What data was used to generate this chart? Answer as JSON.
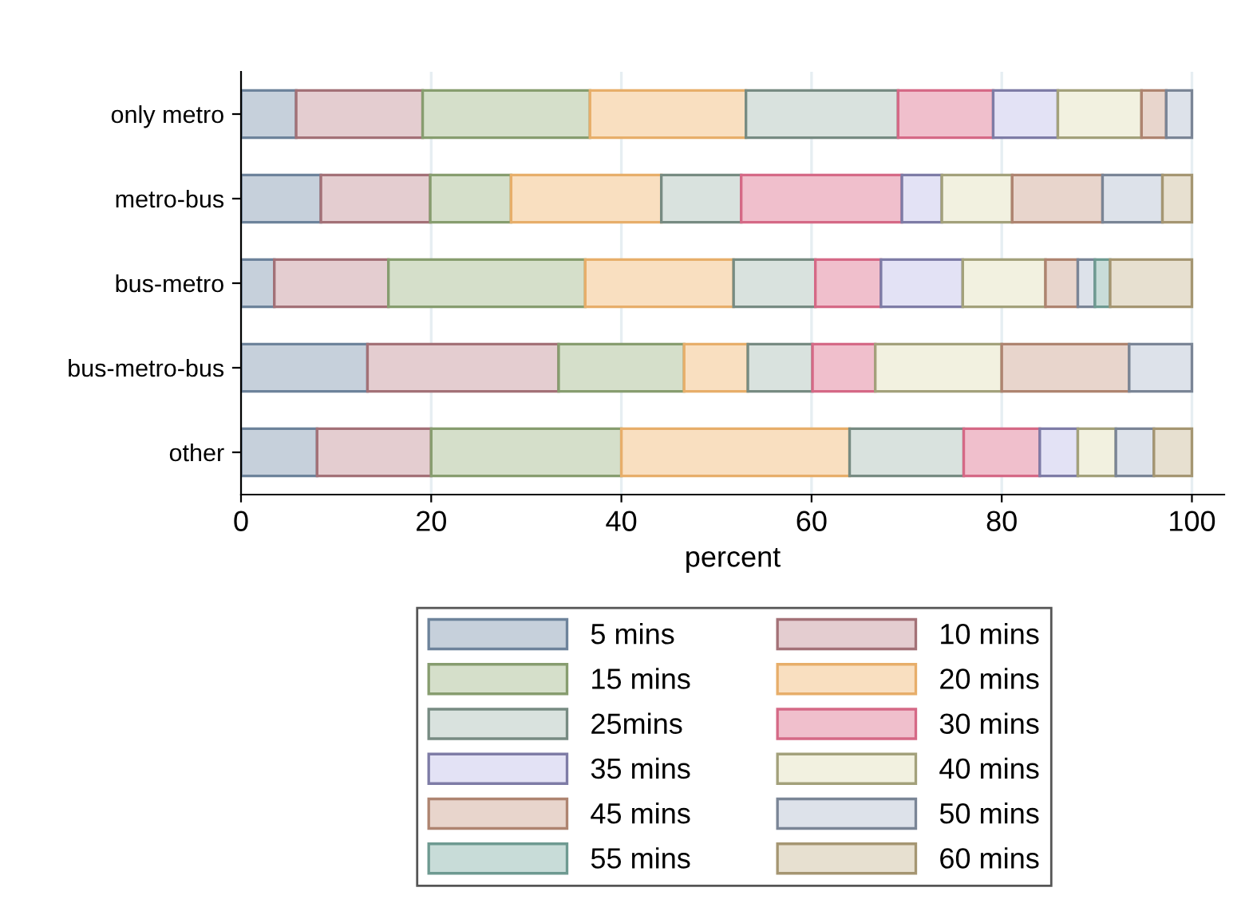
{
  "chart_data": {
    "type": "bar",
    "orientation": "horizontal",
    "stacked": true,
    "xlabel": "percent",
    "categories": [
      "only metro",
      "metro-bus",
      "bus-metro",
      "bus-metro-bus",
      "other"
    ],
    "xlim": [
      0,
      103.4
    ],
    "xticks": [
      0,
      20,
      40,
      60,
      80,
      100
    ],
    "grid": "x",
    "legend": "bottom",
    "series": [
      {
        "name": "5 mins",
        "color": "#c6d0db",
        "values": [
          5.8,
          8.4,
          3.5,
          13.3,
          8
        ]
      },
      {
        "name": "10 mins",
        "color": "#e4cdd0",
        "values": [
          13.3,
          11.5,
          12.0,
          20.1,
          12
        ]
      },
      {
        "name": "15 mins",
        "color": "#d5dfca",
        "values": [
          17.6,
          8.5,
          20.7,
          13.2,
          20
        ]
      },
      {
        "name": "20 mins",
        "color": "#f9dfc0",
        "values": [
          16.4,
          15.8,
          15.6,
          6.7,
          24
        ]
      },
      {
        "name": "25mins",
        "color": "#d9e2de",
        "values": [
          16.0,
          8.4,
          8.6,
          6.8,
          12
        ]
      },
      {
        "name": "30 mins",
        "color": "#f0bfcc",
        "values": [
          10.0,
          16.9,
          6.9,
          6.6,
          8
        ]
      },
      {
        "name": "35 mins",
        "color": "#e3e2f5",
        "values": [
          6.8,
          4.2,
          8.6,
          null,
          4
        ]
      },
      {
        "name": "40 mins",
        "color": "#f2f1e0",
        "values": [
          8.8,
          7.4,
          8.7,
          13.3,
          4
        ]
      },
      {
        "name": "45 mins",
        "color": "#e8d5cc",
        "values": [
          2.6,
          9.5,
          3.4,
          13.4,
          null
        ]
      },
      {
        "name": "50 mins",
        "color": "#dde2ea",
        "values": [
          2.7,
          6.3,
          1.8,
          6.6,
          4
        ]
      },
      {
        "name": "55 mins",
        "color": "#c8dcd8",
        "values": [
          null,
          null,
          1.6,
          null,
          null
        ]
      },
      {
        "name": "60 mins",
        "color": "#e7e0d0",
        "values": [
          null,
          3.1,
          8.6,
          null,
          4
        ]
      }
    ]
  }
}
